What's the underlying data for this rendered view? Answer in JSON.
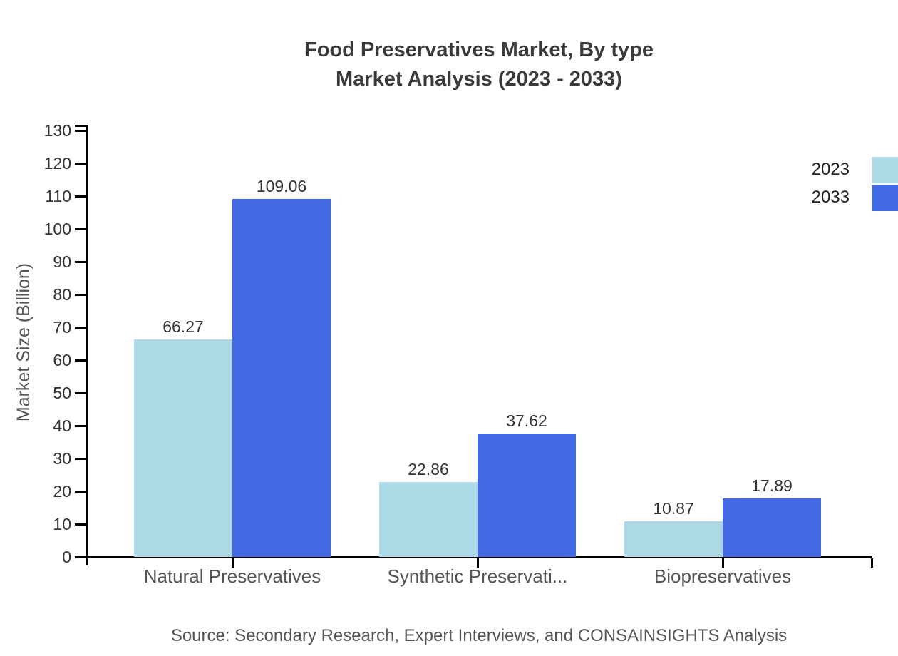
{
  "chart_data": {
    "type": "bar",
    "title_line1": "Food Preservatives Market, By type",
    "title_line2": "Market Analysis (2023 - 2033)",
    "ylabel": "Market Size (Billion)",
    "ylim": [
      0,
      130
    ],
    "ytick_step": 10,
    "grid": false,
    "legend_position": "top-right",
    "categories": [
      "Natural Preservatives",
      "Synthetic Preservati...",
      "Biopreservatives"
    ],
    "series": [
      {
        "name": "2023",
        "color": "#ADD8E6",
        "values": [
          66.27,
          22.86,
          10.87
        ]
      },
      {
        "name": "2033",
        "color": "#4169E1",
        "values": [
          109.06,
          37.62,
          17.89
        ]
      }
    ],
    "source": "Source: Secondary Research, Expert Interviews, and CONSAINSIGHTS Analysis"
  }
}
